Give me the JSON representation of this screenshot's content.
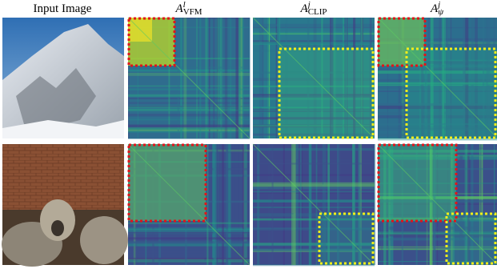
{
  "headers": [
    {
      "text": "Input Image"
    },
    {
      "base": "A",
      "sup": "l",
      "sub": "VFM"
    },
    {
      "base": "A",
      "sup": "j",
      "sub": "CLIP"
    },
    {
      "base": "A",
      "sup": "j",
      "sub": "ψ"
    }
  ]
}
